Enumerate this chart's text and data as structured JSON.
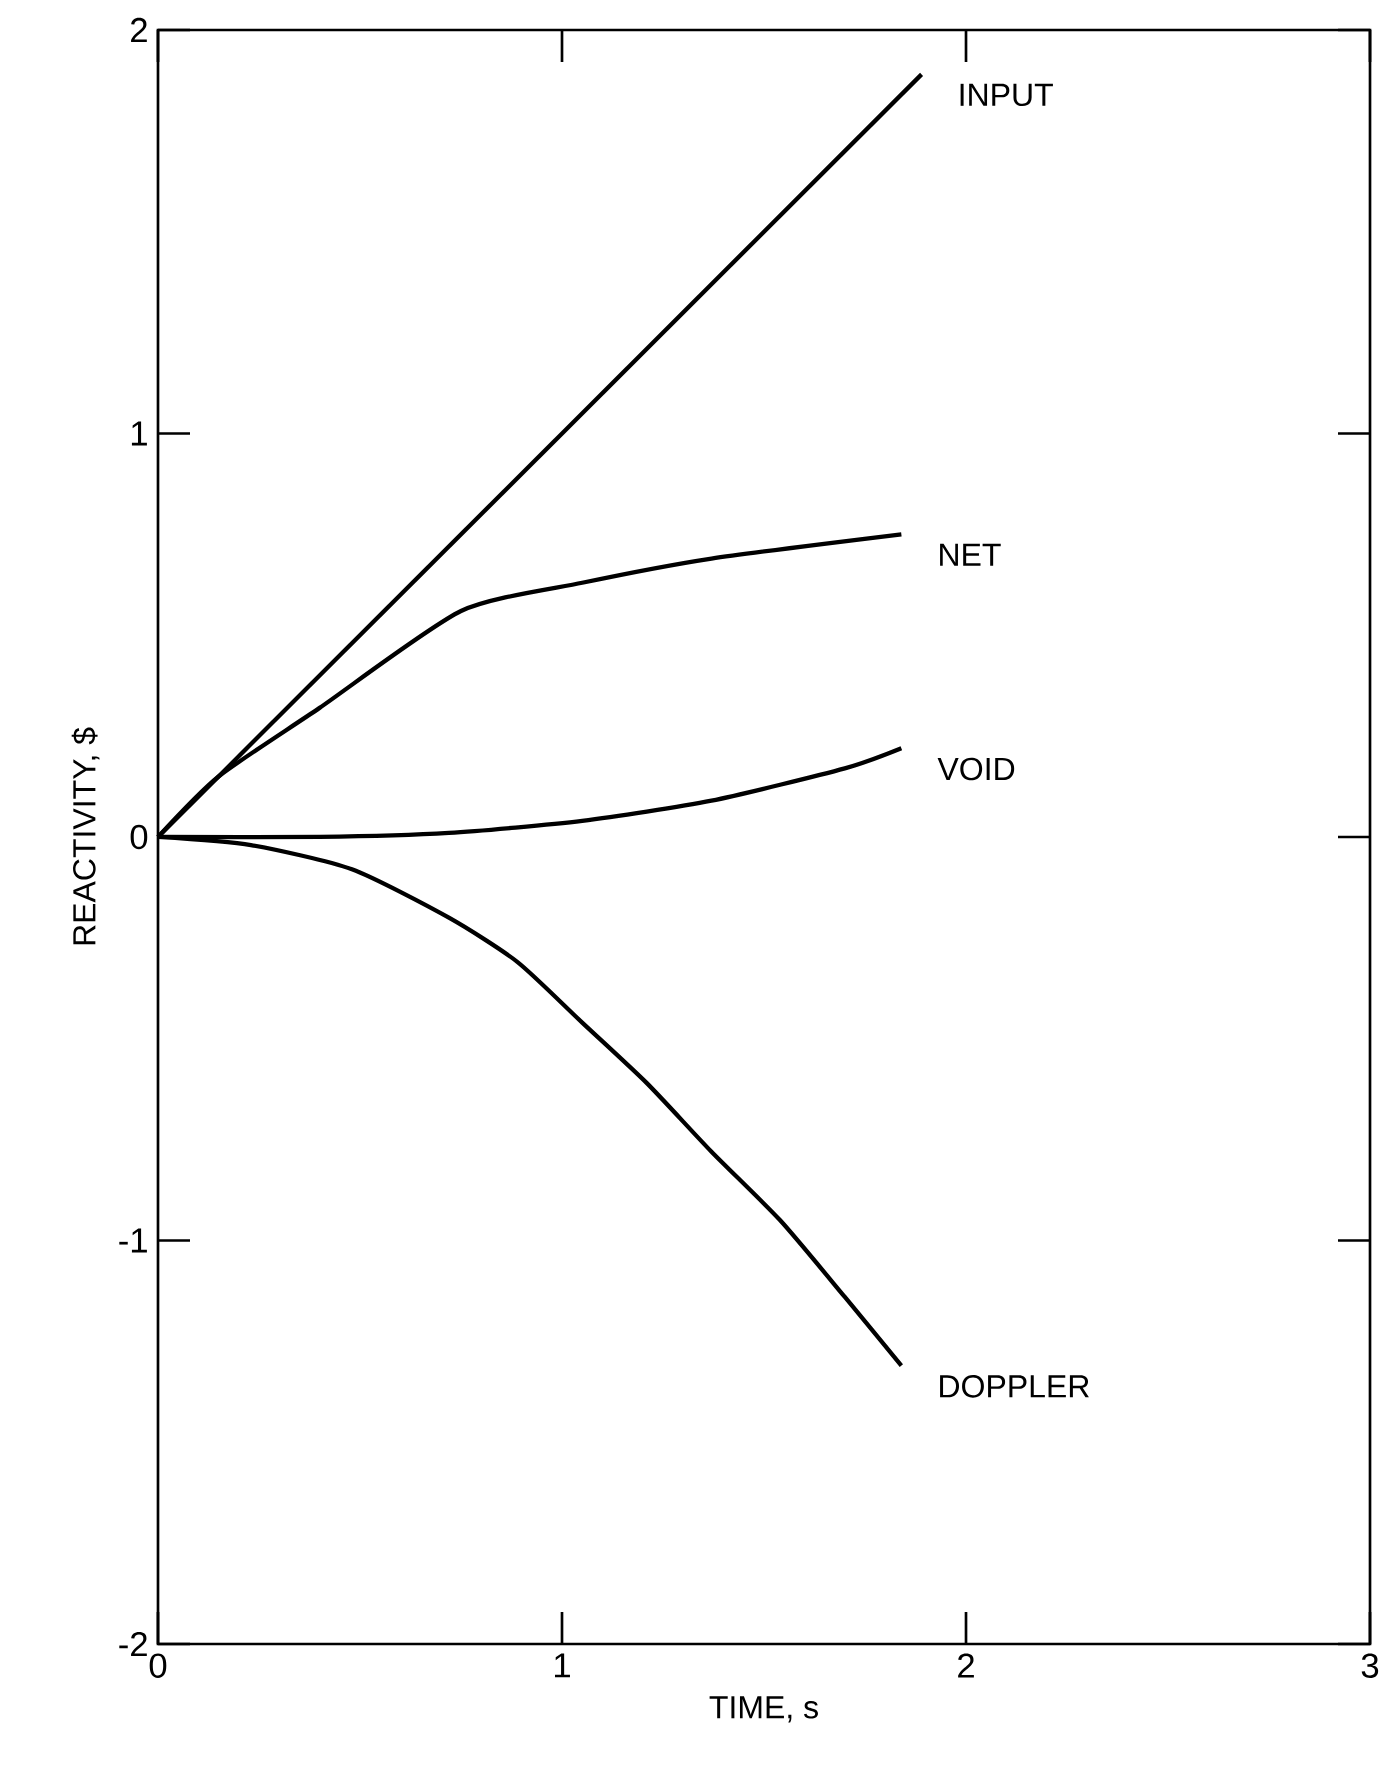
{
  "chart_data": {
    "type": "line",
    "xlabel": "TIME, s",
    "ylabel": "REACTIVITY, $",
    "xlim": [
      0,
      3
    ],
    "ylim": [
      -2,
      2
    ],
    "xticks": [
      0,
      1,
      2,
      3
    ],
    "yticks": [
      -2,
      -1,
      0,
      1,
      2
    ],
    "grid": false,
    "marker": "none",
    "line_style": "solid",
    "series": [
      {
        "name": "INPUT",
        "color": "#000000",
        "x": [
          0,
          1.89
        ],
        "values": [
          0,
          1.89
        ]
      },
      {
        "name": "NET",
        "color": "#000000",
        "x": [
          0,
          0.15,
          0.4,
          0.75,
          1.05,
          1.37,
          1.84
        ],
        "values": [
          0,
          0.15,
          0.32,
          0.56,
          0.63,
          0.69,
          0.75
        ]
      },
      {
        "name": "VOID",
        "color": "#000000",
        "x": [
          0,
          0.4,
          0.72,
          1.05,
          1.37,
          1.7,
          1.84
        ],
        "values": [
          0,
          0,
          0.01,
          0.04,
          0.09,
          0.17,
          0.22
        ]
      },
      {
        "name": "DOPPLER",
        "color": "#000000",
        "x": [
          0,
          0.23,
          0.48,
          0.72,
          0.89,
          1.05,
          1.21,
          1.37,
          1.54,
          1.7,
          1.84
        ],
        "values": [
          0,
          -0.02,
          -0.08,
          -0.2,
          -0.31,
          -0.46,
          -0.61,
          -0.78,
          -0.95,
          -1.14,
          -1.31
        ]
      }
    ]
  }
}
